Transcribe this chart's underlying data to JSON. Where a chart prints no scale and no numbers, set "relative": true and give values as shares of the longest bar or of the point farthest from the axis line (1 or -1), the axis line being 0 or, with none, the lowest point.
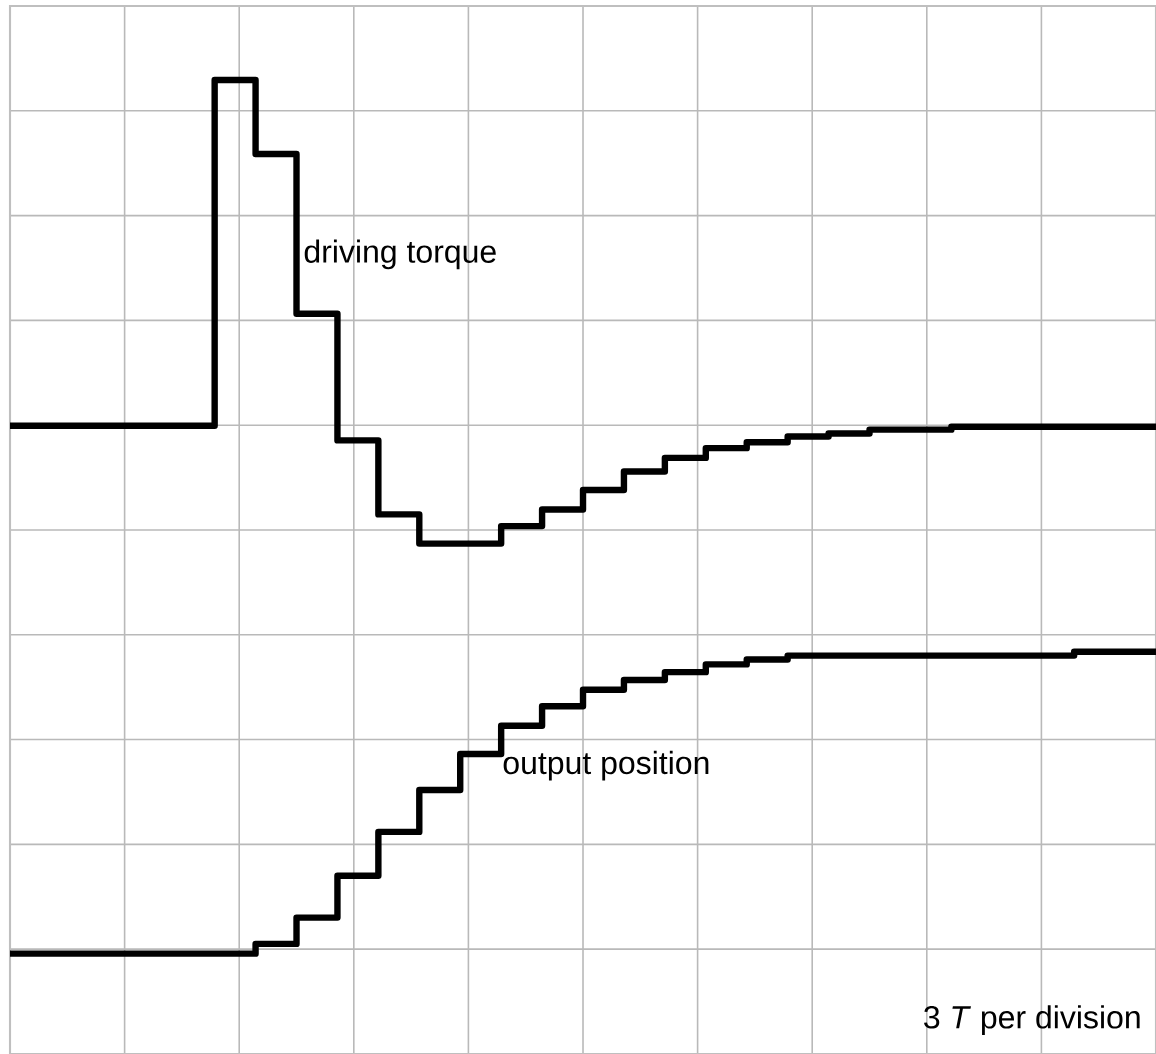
{
  "chart_data": {
    "type": "step",
    "relative": true,
    "grid": true,
    "line_style": "solid",
    "marker": "none",
    "categories": [
      null,
      null,
      null,
      null,
      null,
      null,
      null,
      null,
      null,
      null,
      null,
      null,
      null,
      null,
      null,
      null,
      null,
      null,
      null,
      null,
      null,
      null,
      null,
      null,
      null,
      null,
      null,
      null,
      null
    ],
    "series": [
      {
        "name": "driving torque",
        "color": "#000000",
        "values": [
          0.645,
          0.645,
          0.645,
          0.645,
          0.645,
          1,
          0.924,
          0.76,
          0.63,
          0.554,
          0.524,
          0.524,
          0.542,
          0.559,
          0.579,
          0.598,
          0.612,
          0.622,
          0.628,
          0.634,
          0.637,
          0.641,
          0.641,
          0.644,
          0.644,
          0.644,
          0.644,
          0.644,
          0.645
        ]
      },
      {
        "name": "output position",
        "color": "#000000",
        "values": [
          0.103,
          0.103,
          0.103,
          0.103,
          0.103,
          0.103,
          0.113,
          0.14,
          0.183,
          0.228,
          0.271,
          0.308,
          0.337,
          0.357,
          0.374,
          0.384,
          0.392,
          0.4,
          0.405,
          0.409,
          0.409,
          0.409,
          0.409,
          0.409,
          0.409,
          0.409,
          0.413,
          0.413,
          0.413
        ]
      }
    ],
    "annotations": [
      "3 *T* per division"
    ]
  }
}
